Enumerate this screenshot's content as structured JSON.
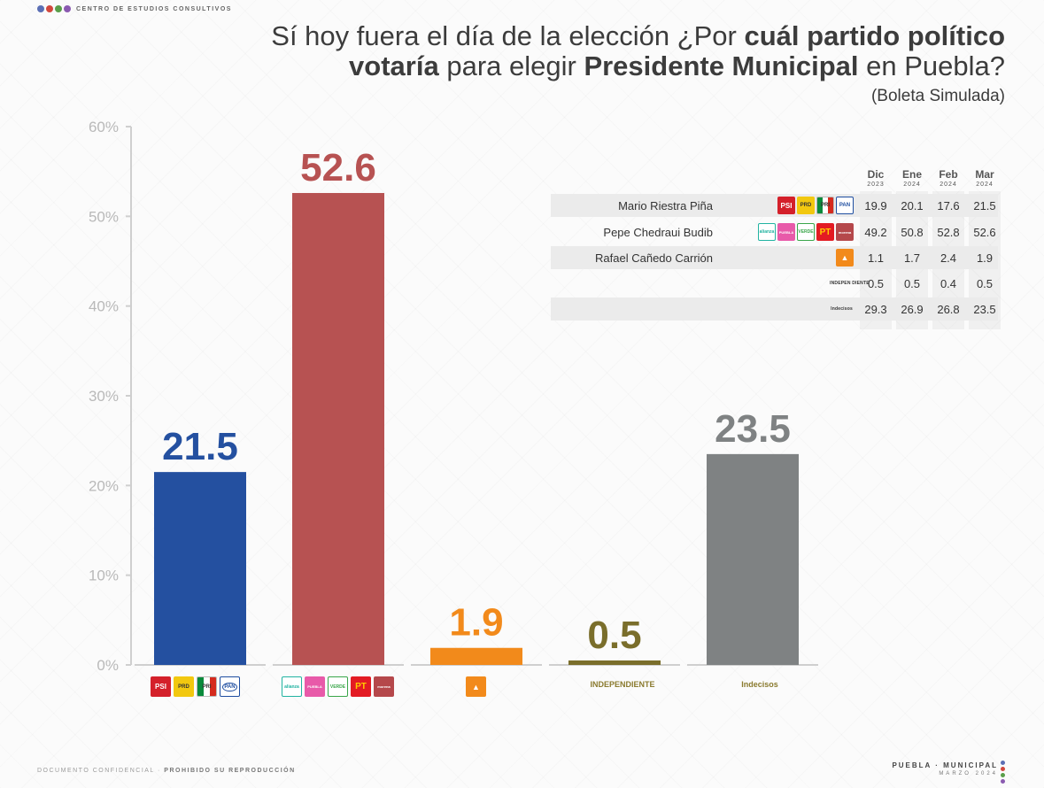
{
  "header": {
    "org_name": "CENTRO DE ESTUDIOS CONSULTIVOS",
    "org_dot_colors": [
      "#5b6fb5",
      "#d2483e",
      "#5a9e4a",
      "#8a5ab0"
    ],
    "title_line1_a": "Sí hoy fuera el día de la elección ¿Por ",
    "title_line1_b": "cuál partido político",
    "title_line2_a": "votaría",
    "title_line2_b": " para elegir ",
    "title_line2_c": "Presidente Municipal",
    "title_line2_d": " en Puebla?",
    "subtitle": "(Boleta Simulada)"
  },
  "chart_data": {
    "type": "bar",
    "categories": [
      "PSI PRD PRI PAN",
      "Alianza Puebla Verde PT Morena",
      "MC",
      "INDEPENDIENTE",
      "Indecisos"
    ],
    "values": [
      21.5,
      52.6,
      1.9,
      0.5,
      23.5
    ],
    "value_labels": [
      "21.5",
      "52.6",
      "1.9",
      "0.5",
      "23.5"
    ],
    "colors": [
      "#2450a0",
      "#b75252",
      "#f28a1b",
      "#7a6e2b",
      "#7f8283"
    ],
    "ylim": [
      0,
      60
    ],
    "yticks": [
      0,
      10,
      20,
      30,
      40,
      50,
      60
    ],
    "ytick_labels": [
      "0%",
      "10%",
      "20%",
      "30%",
      "40%",
      "50%",
      "60%"
    ],
    "grid": false
  },
  "legend": {
    "coalition1_logos": [
      "PSI",
      "PRD",
      "PRI",
      "PAN"
    ],
    "coalition2_logos": [
      "alianza",
      "PUEBLA PUEDE",
      "VERDE",
      "PT",
      "morena"
    ],
    "mc_logo": "MC",
    "independiente": "INDEPENDIENTE",
    "indecisos": "Indecisos"
  },
  "table": {
    "months": [
      {
        "m": "Dic",
        "y": "2023"
      },
      {
        "m": "Ene",
        "y": "2024"
      },
      {
        "m": "Feb",
        "y": "2024"
      },
      {
        "m": "Mar",
        "y": "2024"
      }
    ],
    "rows": [
      {
        "name": "Mario Riestra Piña",
        "values": [
          "19.9",
          "20.1",
          "17.6",
          "21.5"
        ]
      },
      {
        "name": "Pepe Chedraui Budib",
        "values": [
          "49.2",
          "50.8",
          "52.8",
          "52.6"
        ]
      },
      {
        "name": "Rafael Cañedo Carrión",
        "values": [
          "1.1",
          "1.7",
          "2.4",
          "1.9"
        ]
      },
      {
        "name": "INDEPEN DIENTE",
        "values": [
          "0.5",
          "0.5",
          "0.4",
          "0.5"
        ]
      },
      {
        "name": "Indecisos",
        "values": [
          "29.3",
          "26.9",
          "26.8",
          "23.5"
        ]
      }
    ]
  },
  "footer": {
    "left_a": "DOCUMENTO CONFIDENCIAL · ",
    "left_b": "PROHIBIDO SU REPRODUCCIÓN",
    "right_line1": "PUEBLA · MUNICIPAL",
    "right_line2": "MARZO 2024"
  }
}
